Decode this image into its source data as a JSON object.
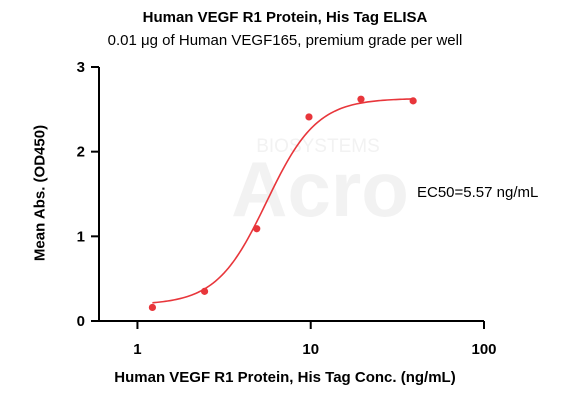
{
  "chart_data": {
    "type": "scatter",
    "title": "Human VEGF R1 Protein, His Tag ELISA",
    "subtitle": "0.01 μg of Human VEGF165, premium grade per well",
    "xlabel": "Human VEGF R1 Protein, His Tag Conc. (ng/mL)",
    "ylabel": "Mean Abs. (OD450)",
    "x_scale": "log",
    "xlim": [
      0.6,
      100
    ],
    "ylim": [
      0,
      3
    ],
    "x_ticks": [
      1,
      10,
      100
    ],
    "x_tick_labels": [
      "1",
      "10",
      "100"
    ],
    "y_ticks": [
      0,
      1,
      2,
      3
    ],
    "y_tick_labels": [
      "0",
      "1",
      "2",
      "3"
    ],
    "grid": false,
    "color": "#e8363b",
    "series": [
      {
        "x": [
          1.22,
          2.44,
          4.88,
          9.77,
          19.5,
          39.0
        ],
        "y": [
          0.16,
          0.35,
          1.09,
          2.41,
          2.62,
          2.6
        ],
        "fit": "4PL sigmoidal curve"
      }
    ],
    "fit_params": {
      "bottom": 0.19,
      "top": 2.63,
      "ec50": 5.57,
      "hill": 3.0
    },
    "annotations": [
      "EC50=5.57 ng/mL"
    ],
    "watermark": [
      "BIOSYSTEMS",
      "Acro"
    ]
  }
}
